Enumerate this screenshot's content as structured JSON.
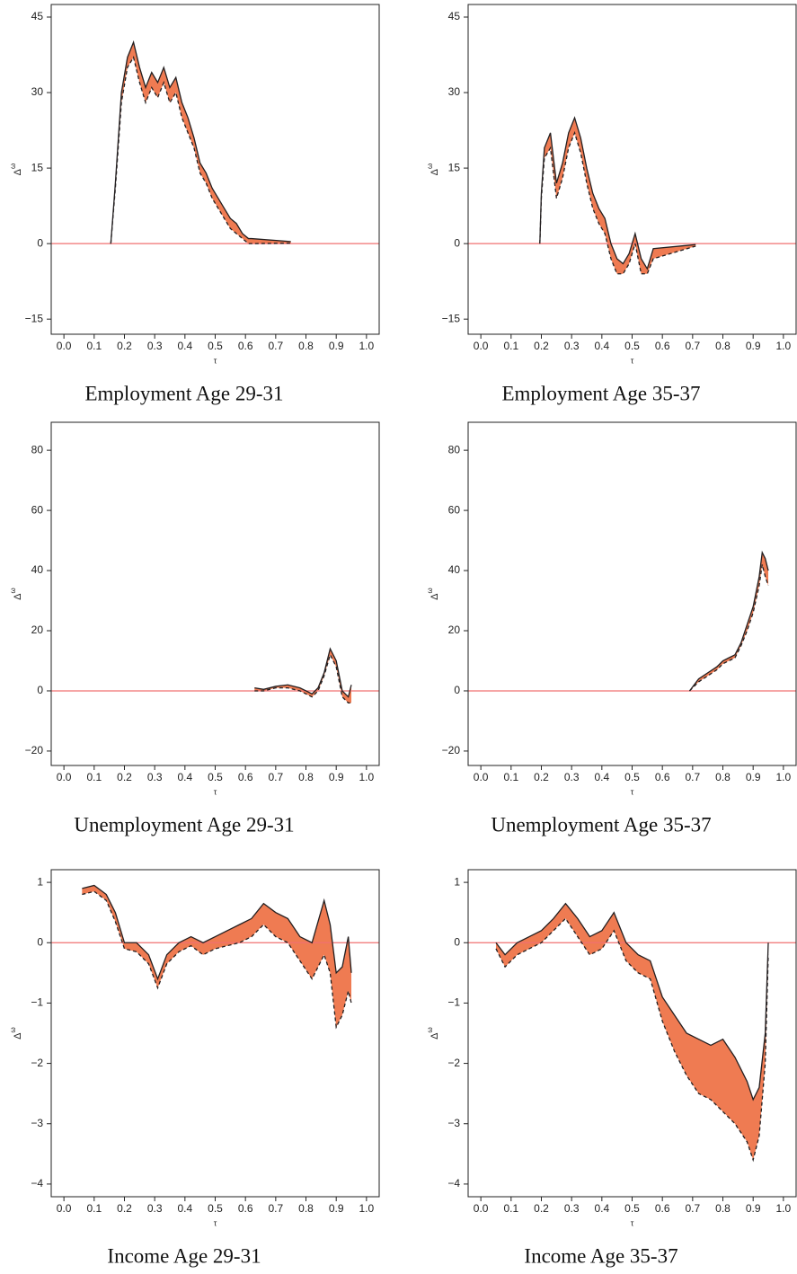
{
  "chart_data": [
    {
      "type": "line",
      "title": "Employment Age 29-31",
      "xlabel": "τ",
      "ylabel": "Δ",
      "ylabel_sup": "ω",
      "x": [
        0.155,
        0.17,
        0.19,
        0.21,
        0.23,
        0.25,
        0.27,
        0.29,
        0.31,
        0.33,
        0.35,
        0.37,
        0.39,
        0.41,
        0.43,
        0.45,
        0.47,
        0.49,
        0.51,
        0.53,
        0.55,
        0.57,
        0.59,
        0.61,
        0.62,
        0.75
      ],
      "series": [
        {
          "color": "#231f20",
          "dash": false,
          "values": [
            0,
            12,
            30,
            37,
            40,
            35,
            31,
            34,
            32,
            35,
            31,
            33,
            28,
            25,
            21,
            16,
            14,
            11,
            9,
            7,
            5,
            4,
            2,
            1,
            1,
            0.4
          ]
        },
        {
          "color": "#231f20",
          "dash": true,
          "values": [
            0,
            11,
            28,
            35,
            37,
            32,
            28,
            31,
            29,
            32,
            28,
            30,
            25,
            22,
            19,
            14,
            12,
            9,
            7,
            5,
            3,
            2,
            1,
            0,
            0,
            0.1
          ]
        }
      ],
      "band_color": "#ef7b52",
      "reference_line": {
        "value": 0,
        "color": "#f07070"
      },
      "xlim": [
        -0.042,
        1.042
      ],
      "xticks": [
        {
          "value": 0,
          "label": "0.0"
        },
        0.1,
        0.2,
        0.3,
        0.4,
        0.5,
        0.6,
        0.7,
        0.8,
        0.9,
        {
          "value": 1,
          "label": "1.0"
        }
      ],
      "ylim": [
        -18,
        47.5
      ],
      "yticks": [
        {
          "value": -15,
          "label": "−15"
        },
        0,
        15,
        30,
        45
      ]
    },
    {
      "type": "line",
      "title": "Employment Age 35-37",
      "xlabel": "τ",
      "ylabel": "Δ",
      "ylabel_sup": "ω",
      "x": [
        0.195,
        0.2,
        0.21,
        0.23,
        0.25,
        0.27,
        0.29,
        0.31,
        0.33,
        0.35,
        0.37,
        0.39,
        0.41,
        0.43,
        0.45,
        0.47,
        0.49,
        0.51,
        0.53,
        0.55,
        0.57,
        0.71
      ],
      "series": [
        {
          "color": "#231f20",
          "dash": false,
          "values": [
            0,
            10,
            19,
            22,
            12,
            16,
            22,
            25,
            21,
            15,
            10,
            7,
            5,
            0,
            -3,
            -4,
            -2,
            2,
            -3,
            -5,
            -1,
            -0.2
          ]
        },
        {
          "color": "#231f20",
          "dash": true,
          "values": [
            0,
            9,
            17,
            19,
            9,
            13,
            19,
            22,
            18,
            12,
            7,
            4,
            2,
            -3,
            -6,
            -6,
            -4,
            0,
            -6,
            -6,
            -3,
            -0.5
          ]
        }
      ],
      "band_color": "#ef7b52",
      "reference_line": {
        "value": 0,
        "color": "#f07070"
      },
      "xlim": [
        -0.042,
        1.042
      ],
      "xticks": [
        {
          "value": 0,
          "label": "0.0"
        },
        0.1,
        0.2,
        0.3,
        0.4,
        0.5,
        0.6,
        0.7,
        0.8,
        0.9,
        {
          "value": 1,
          "label": "1.0"
        }
      ],
      "ylim": [
        -18,
        47.5
      ],
      "yticks": [
        {
          "value": -15,
          "label": "−15"
        },
        0,
        15,
        30,
        45
      ]
    },
    {
      "type": "line",
      "title": "Unemployment Age 29-31",
      "xlabel": "τ",
      "ylabel": "Δ",
      "ylabel_sup": "ω",
      "x": [
        0.63,
        0.66,
        0.7,
        0.74,
        0.78,
        0.8,
        0.82,
        0.84,
        0.86,
        0.88,
        0.9,
        0.92,
        0.94,
        0.95
      ],
      "series": [
        {
          "color": "#231f20",
          "dash": false,
          "values": [
            1,
            0.5,
            1.5,
            2,
            1,
            0,
            -1,
            1,
            6,
            14,
            10,
            0,
            -2,
            2
          ]
        },
        {
          "color": "#231f20",
          "dash": true,
          "values": [
            0,
            0,
            1,
            1,
            0,
            -1,
            -2,
            0,
            5,
            12,
            8,
            -2,
            -4,
            -4
          ]
        }
      ],
      "band_color": "#ef7b52",
      "reference_line": {
        "value": 0,
        "color": "#f07070"
      },
      "xlim": [
        -0.042,
        1.042
      ],
      "xticks": [
        {
          "value": 0,
          "label": "0.0"
        },
        0.1,
        0.2,
        0.3,
        0.4,
        0.5,
        0.6,
        0.7,
        0.8,
        0.9,
        {
          "value": 1,
          "label": "1.0"
        }
      ],
      "ylim": [
        -24.8,
        89.3
      ],
      "yticks": [
        {
          "value": -20,
          "label": "−20"
        },
        0,
        20,
        40,
        60,
        80
      ]
    },
    {
      "type": "line",
      "title": "Unemployment Age 35-37",
      "xlabel": "τ",
      "ylabel": "Δ",
      "ylabel_sup": "ω",
      "x": [
        0.69,
        0.72,
        0.75,
        0.78,
        0.8,
        0.82,
        0.84,
        0.86,
        0.88,
        0.9,
        0.92,
        0.93,
        0.94,
        0.95
      ],
      "series": [
        {
          "color": "#231f20",
          "dash": false,
          "values": [
            0,
            4,
            6,
            8,
            10,
            11,
            12,
            16,
            22,
            28,
            38,
            46,
            44,
            40
          ]
        },
        {
          "color": "#231f20",
          "dash": true,
          "values": [
            0,
            3,
            5,
            7,
            9,
            10,
            11,
            15,
            20,
            26,
            35,
            42,
            38,
            35
          ]
        }
      ],
      "band_color": "#ef7b52",
      "reference_line": {
        "value": 0,
        "color": "#f07070"
      },
      "xlim": [
        -0.042,
        1.042
      ],
      "xticks": [
        {
          "value": 0,
          "label": "0.0"
        },
        0.1,
        0.2,
        0.3,
        0.4,
        0.5,
        0.6,
        0.7,
        0.8,
        0.9,
        {
          "value": 1,
          "label": "1.0"
        }
      ],
      "ylim": [
        -24.8,
        89.3
      ],
      "yticks": [
        {
          "value": -20,
          "label": "−20"
        },
        0,
        20,
        40,
        60,
        80
      ]
    },
    {
      "type": "line",
      "title": "Income Age 29-31",
      "xlabel": "τ",
      "ylabel": "Δ",
      "ylabel_sup": "ω",
      "x": [
        0.06,
        0.1,
        0.14,
        0.17,
        0.2,
        0.24,
        0.28,
        0.31,
        0.34,
        0.38,
        0.42,
        0.46,
        0.5,
        0.54,
        0.58,
        0.62,
        0.66,
        0.7,
        0.74,
        0.78,
        0.82,
        0.86,
        0.88,
        0.9,
        0.92,
        0.94,
        0.95
      ],
      "series": [
        {
          "color": "#231f20",
          "dash": false,
          "values": [
            0.9,
            0.95,
            0.8,
            0.5,
            0,
            0,
            -0.2,
            -0.6,
            -0.2,
            0,
            0.1,
            0,
            0.1,
            0.2,
            0.3,
            0.4,
            0.65,
            0.5,
            0.4,
            0.1,
            0,
            0.7,
            0.3,
            -0.5,
            -0.4,
            0.1,
            -0.5
          ]
        },
        {
          "color": "#231f20",
          "dash": true,
          "values": [
            0.8,
            0.85,
            0.7,
            0.35,
            -0.1,
            -0.15,
            -0.35,
            -0.75,
            -0.35,
            -0.15,
            -0.05,
            -0.2,
            -0.1,
            -0.05,
            0,
            0.1,
            0.3,
            0.1,
            0,
            -0.3,
            -0.6,
            -0.2,
            -0.5,
            -1.4,
            -1.2,
            -0.8,
            -1
          ]
        }
      ],
      "band_color": "#ef7b52",
      "reference_line": {
        "value": 0,
        "color": "#f07070"
      },
      "xlim": [
        -0.042,
        1.042
      ],
      "xticks": [
        {
          "value": 0,
          "label": "0.0"
        },
        0.1,
        0.2,
        0.3,
        0.4,
        0.5,
        0.6,
        0.7,
        0.8,
        0.9,
        {
          "value": 1,
          "label": "1.0"
        }
      ],
      "ylim": [
        -4.21,
        1.21
      ],
      "yticks": [
        {
          "value": -4,
          "label": "−4"
        },
        {
          "value": -3,
          "label": "−3"
        },
        {
          "value": -2,
          "label": "−2"
        },
        {
          "value": -1,
          "label": "−1"
        },
        0,
        1
      ]
    },
    {
      "type": "line",
      "title": "Income Age 35-37",
      "xlabel": "τ",
      "ylabel": "Δ",
      "ylabel_sup": "ω",
      "x": [
        0.05,
        0.08,
        0.12,
        0.16,
        0.2,
        0.24,
        0.28,
        0.32,
        0.36,
        0.4,
        0.44,
        0.48,
        0.52,
        0.56,
        0.6,
        0.64,
        0.68,
        0.72,
        0.76,
        0.8,
        0.84,
        0.88,
        0.9,
        0.92,
        0.94,
        0.95
      ],
      "series": [
        {
          "color": "#231f20",
          "dash": false,
          "values": [
            0,
            -0.2,
            0,
            0.1,
            0.2,
            0.4,
            0.65,
            0.4,
            0.1,
            0.2,
            0.5,
            0,
            -0.2,
            -0.3,
            -0.9,
            -1.2,
            -1.5,
            -1.6,
            -1.7,
            -1.6,
            -1.9,
            -2.3,
            -2.6,
            -2.4,
            -1.5,
            0
          ]
        },
        {
          "color": "#231f20",
          "dash": true,
          "values": [
            -0.1,
            -0.4,
            -0.2,
            -0.1,
            0,
            0.2,
            0.4,
            0.1,
            -0.2,
            -0.1,
            0.2,
            -0.3,
            -0.5,
            -0.6,
            -1.3,
            -1.8,
            -2.2,
            -2.5,
            -2.6,
            -2.8,
            -3,
            -3.3,
            -3.6,
            -3.2,
            -2,
            -0.2
          ]
        }
      ],
      "band_color": "#ef7b52",
      "reference_line": {
        "value": 0,
        "color": "#f07070"
      },
      "xlim": [
        -0.042,
        1.042
      ],
      "xticks": [
        {
          "value": 0,
          "label": "0.0"
        },
        0.1,
        0.2,
        0.3,
        0.4,
        0.5,
        0.6,
        0.7,
        0.8,
        0.9,
        {
          "value": 1,
          "label": "1.0"
        }
      ],
      "ylim": [
        -4.21,
        1.21
      ],
      "yticks": [
        {
          "value": -4,
          "label": "−4"
        },
        {
          "value": -3,
          "label": "−3"
        },
        {
          "value": -2,
          "label": "−2"
        },
        {
          "value": -1,
          "label": "−1"
        },
        0,
        1
      ]
    }
  ]
}
